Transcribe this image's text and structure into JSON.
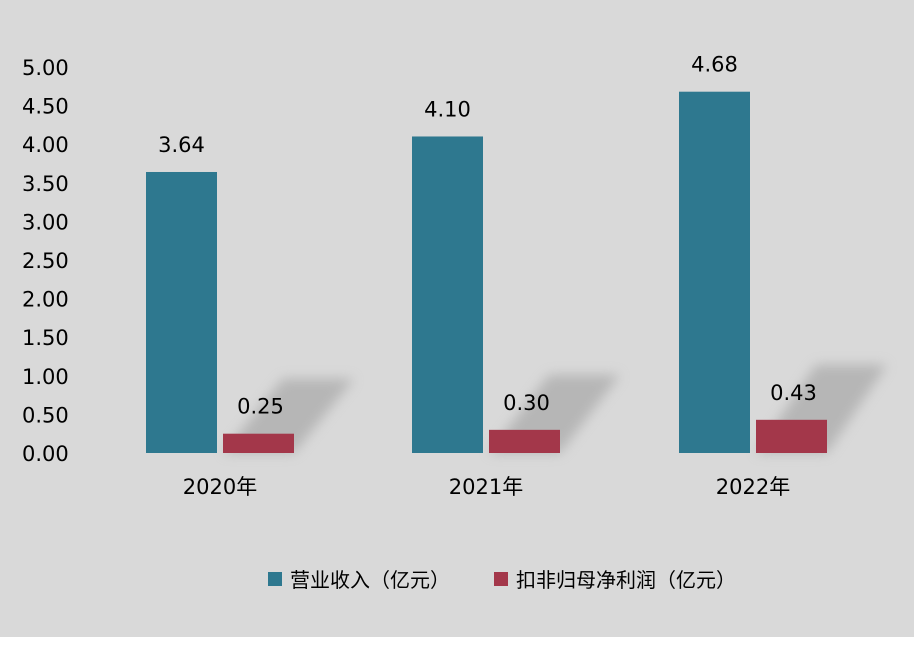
{
  "chart_data": {
    "type": "bar",
    "categories": [
      "2020年",
      "2021年",
      "2022年"
    ],
    "series": [
      {
        "name": "营业收入（亿元）",
        "values": [
          3.64,
          4.1,
          4.68
        ],
        "color": "#2e788f"
      },
      {
        "name": "扣非归母净利润（亿元）",
        "values": [
          0.25,
          0.3,
          0.43
        ],
        "color": "#a3374a"
      }
    ],
    "data_labels": [
      [
        "3.64",
        "4.10",
        "4.68"
      ],
      [
        "0.25",
        "0.30",
        "0.43"
      ]
    ],
    "y_ticks": [
      "0.00",
      "0.50",
      "1.00",
      "1.50",
      "2.00",
      "2.50",
      "3.00",
      "3.50",
      "4.00",
      "4.50",
      "5.00"
    ],
    "ylim": [
      0,
      5
    ],
    "grid": false,
    "legend_position": "bottom",
    "background": "#d9d9d9"
  }
}
